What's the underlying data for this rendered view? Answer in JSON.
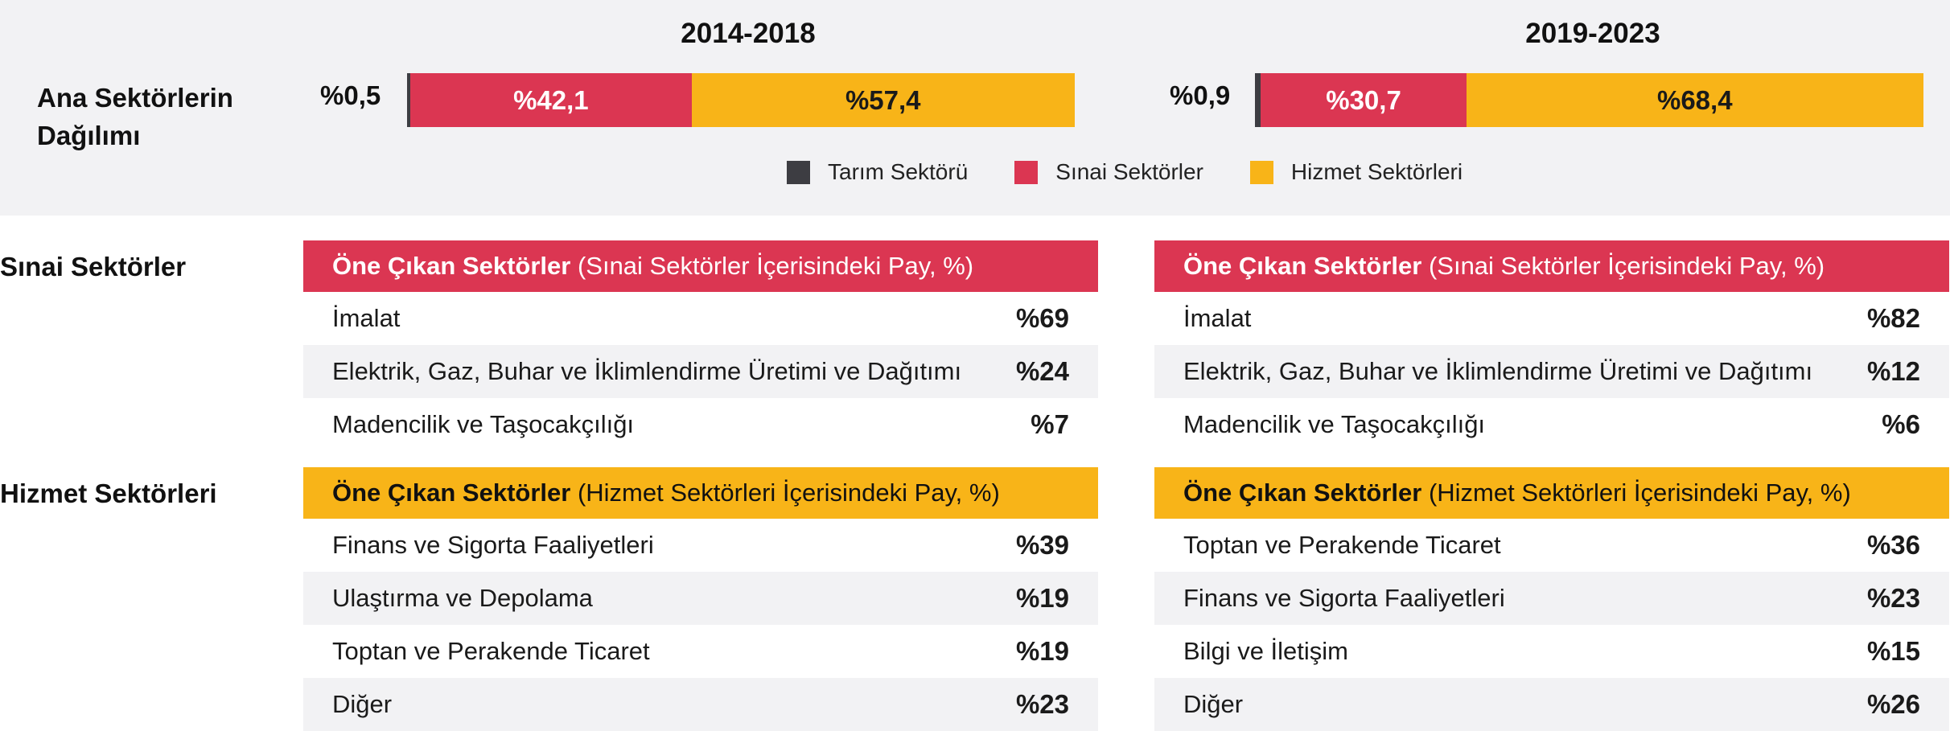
{
  "periods": [
    {
      "title": "2014-2018",
      "agri_label": "%0,5",
      "ind_label": "%42,1",
      "svc_label": "%57,4"
    },
    {
      "title": "2019-2023",
      "agri_label": "%0,9",
      "ind_label": "%30,7",
      "svc_label": "%68,4"
    }
  ],
  "dist_label": "Ana Sektörlerin Dağılımı",
  "legend": [
    {
      "label": "Tarım Sektörü",
      "color": "#3d3d42"
    },
    {
      "label": "Sınai Sektörler",
      "color": "#db3652"
    },
    {
      "label": "Hizmet Sektörleri",
      "color": "#f8b418"
    }
  ],
  "sections": {
    "industrial": "Sınai Sektörler",
    "services": "Hizmet Sektörleri"
  },
  "tables": {
    "ind_head_bold": "Öne Çıkan Sektörler",
    "ind_head_rest": " (Sınai Sektörler İçerisindeki Pay, %)",
    "svc_head_bold": "Öne Çıkan Sektörler",
    "svc_head_rest": " (Hizmet Sektörleri İçerisindeki Pay, %)",
    "ind_left": [
      {
        "name": "İmalat",
        "value": "%69"
      },
      {
        "name": "Elektrik, Gaz, Buhar ve İklimlendirme Üretimi ve Dağıtımı",
        "value": "%24"
      },
      {
        "name": "Madencilik ve Taşocakçılığı",
        "value": "%7"
      }
    ],
    "ind_right": [
      {
        "name": "İmalat",
        "value": "%82"
      },
      {
        "name": "Elektrik, Gaz, Buhar ve İklimlendirme Üretimi ve Dağıtımı",
        "value": "%12"
      },
      {
        "name": "Madencilik ve Taşocakçılığı",
        "value": "%6"
      }
    ],
    "svc_left": [
      {
        "name": "Finans ve Sigorta Faaliyetleri",
        "value": "%39"
      },
      {
        "name": "Ulaştırma ve Depolama",
        "value": "%19"
      },
      {
        "name": "Toptan ve Perakende Ticaret",
        "value": "%19"
      },
      {
        "name": "Diğer",
        "value": "%23"
      }
    ],
    "svc_right": [
      {
        "name": "Toptan ve Perakende Ticaret",
        "value": "%36"
      },
      {
        "name": "Finans ve Sigorta Faaliyetleri",
        "value": "%23"
      },
      {
        "name": "Bilgi ve İletişim",
        "value": "%15"
      },
      {
        "name": "Diğer",
        "value": "%26"
      }
    ]
  },
  "chart_data": {
    "type": "bar",
    "orientation": "horizontal-stacked",
    "categories": [
      "2014-2018",
      "2019-2023"
    ],
    "series": [
      {
        "name": "Tarım Sektörü",
        "values": [
          0.5,
          0.9
        ]
      },
      {
        "name": "Sınai Sektörler",
        "values": [
          42.1,
          30.7
        ]
      },
      {
        "name": "Hizmet Sektörleri",
        "values": [
          57.4,
          68.4
        ]
      }
    ],
    "legend_position": "bottom"
  }
}
